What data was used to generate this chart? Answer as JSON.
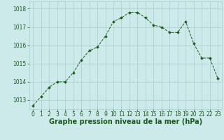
{
  "x": [
    0,
    1,
    2,
    3,
    4,
    5,
    6,
    7,
    8,
    9,
    10,
    11,
    12,
    13,
    14,
    15,
    16,
    17,
    18,
    19,
    20,
    21,
    22,
    23
  ],
  "y": [
    1012.7,
    1013.2,
    1013.7,
    1014.0,
    1014.0,
    1014.5,
    1015.2,
    1015.7,
    1015.9,
    1016.5,
    1017.3,
    1017.5,
    1017.8,
    1017.8,
    1017.5,
    1017.1,
    1017.0,
    1016.7,
    1016.7,
    1017.3,
    1016.1,
    1015.3,
    1015.3,
    1014.2
  ],
  "line_color": "#1a5c1a",
  "marker_color": "#1a5c1a",
  "bg_color": "#cceaea",
  "grid_color": "#aacccc",
  "title": "Graphe pression niveau de la mer (hPa)",
  "ylim_min": 1012.5,
  "ylim_max": 1018.4,
  "yticks": [
    1013,
    1014,
    1015,
    1016,
    1017,
    1018
  ],
  "xticks": [
    0,
    1,
    2,
    3,
    4,
    5,
    6,
    7,
    8,
    9,
    10,
    11,
    12,
    13,
    14,
    15,
    16,
    17,
    18,
    19,
    20,
    21,
    22,
    23
  ],
  "title_fontsize": 7.0,
  "tick_fontsize": 5.5,
  "title_color": "#1a5c1a",
  "tick_color": "#1a5c1a"
}
